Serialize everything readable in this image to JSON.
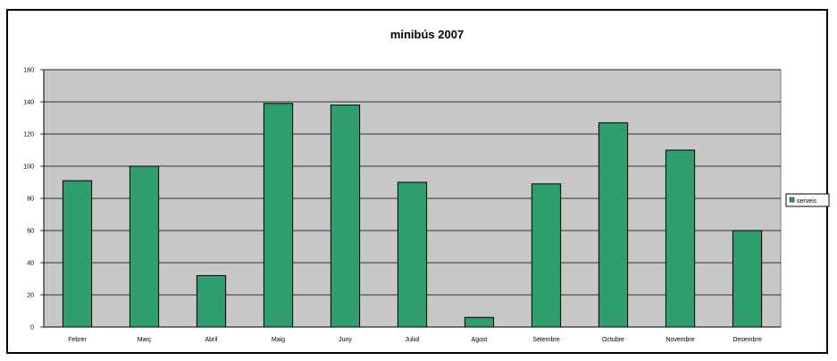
{
  "chart_data": {
    "type": "bar",
    "title": "minibús 2007",
    "xlabel": "",
    "ylabel": "",
    "categories": [
      "Febrer",
      "Març",
      "Abril",
      "Maig",
      "Juny",
      "Juliol",
      "Agost",
      "Setembre",
      "Octubre",
      "Novembre",
      "Desembre"
    ],
    "series": [
      {
        "name": "serveis",
        "values": [
          91,
          100,
          32,
          139,
          138,
          90,
          6,
          89,
          127,
          110,
          60
        ]
      }
    ],
    "ylim": [
      0,
      160
    ],
    "yticks": [
      0,
      20,
      40,
      60,
      80,
      100,
      120,
      140,
      160
    ],
    "grid": true,
    "legend_position": "right",
    "colors": {
      "bar_fill": "#2e9e6c",
      "plot_background": "#c8c8c8",
      "gridline": "#000000"
    }
  }
}
